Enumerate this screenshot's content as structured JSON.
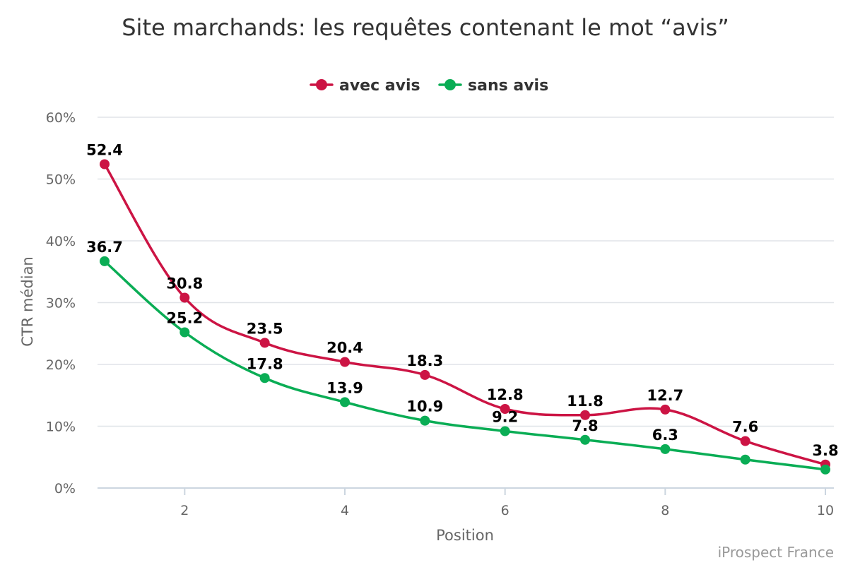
{
  "chart_data": {
    "type": "line",
    "title": "Site marchands: les requêtes contenant le mot “avis”",
    "xlabel": "Position",
    "ylabel": "CTR médian",
    "x": [
      1,
      2,
      3,
      4,
      5,
      6,
      7,
      8,
      9,
      10
    ],
    "xticks": [
      2,
      4,
      6,
      8,
      10
    ],
    "xlim": [
      1,
      10
    ],
    "ylim": [
      0,
      60
    ],
    "yticks": [
      0,
      10,
      20,
      30,
      40,
      50,
      60
    ],
    "ytick_suffix": "%",
    "grid": true,
    "legend_position": "top-center",
    "series": [
      {
        "name": "avec avis",
        "color": "#cc1444",
        "values": [
          52.4,
          30.8,
          23.5,
          20.4,
          18.3,
          12.8,
          11.8,
          12.7,
          7.6,
          3.8
        ],
        "labels": [
          "52.4",
          "30.8",
          "23.5",
          "20.4",
          "18.3",
          "12.8",
          "11.8",
          "12.7",
          "7.6",
          "3.8"
        ]
      },
      {
        "name": "sans avis",
        "color": "#0aad55",
        "values": [
          36.7,
          25.2,
          17.8,
          13.9,
          10.9,
          9.2,
          7.8,
          6.3,
          4.6,
          3.0
        ],
        "labels": [
          "36.7",
          "25.2",
          "17.8",
          "13.9",
          "10.9",
          "9.2",
          "7.8",
          "6.3",
          null,
          null
        ]
      }
    ],
    "credit": "iProspect France"
  }
}
